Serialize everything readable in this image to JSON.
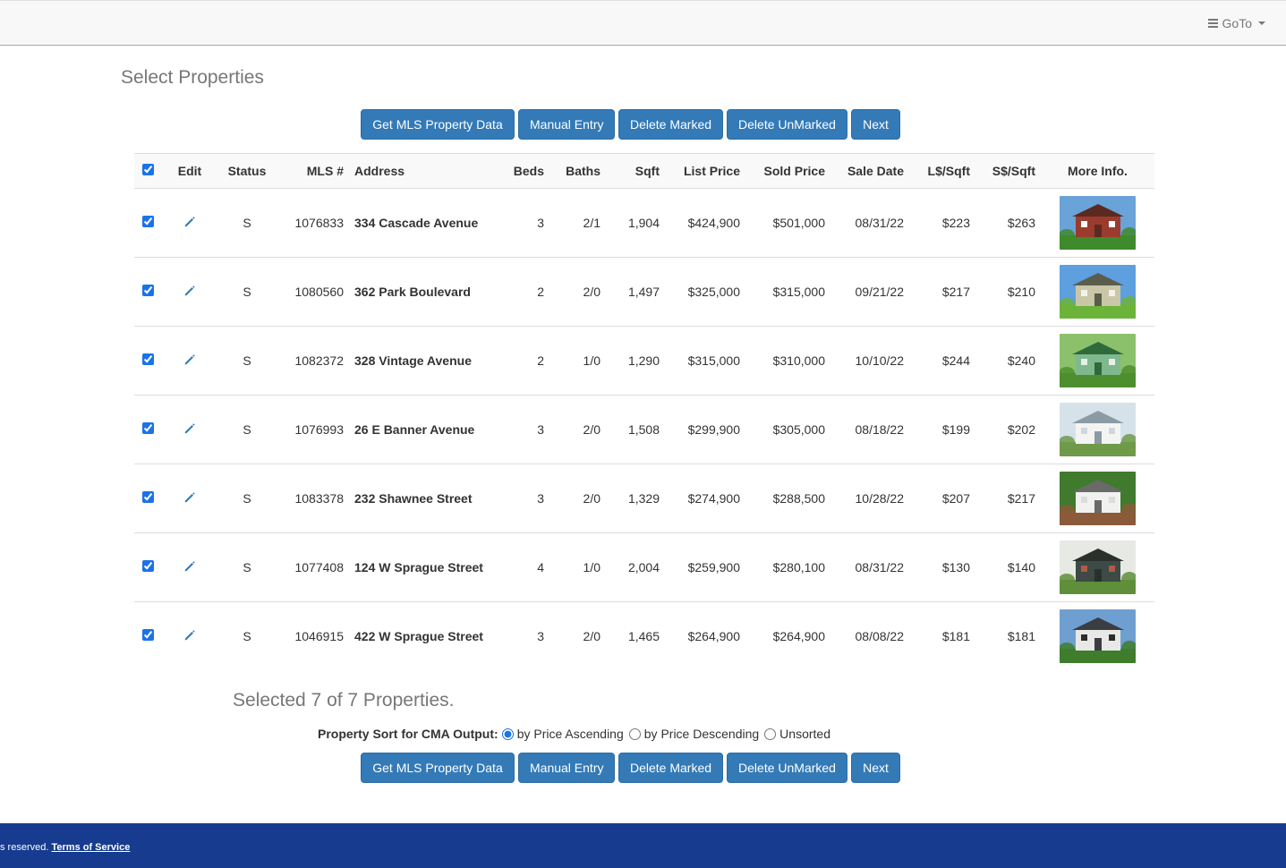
{
  "nav": {
    "goto_label": "GoTo"
  },
  "page": {
    "title": "Select Properties"
  },
  "buttons": {
    "get_mls": "Get MLS Property Data",
    "manual_entry": "Manual Entry",
    "delete_marked": "Delete Marked",
    "delete_unmarked": "Delete UnMarked",
    "next": "Next"
  },
  "table": {
    "headers": {
      "edit": "Edit",
      "status": "Status",
      "mls": "MLS #",
      "address": "Address",
      "beds": "Beds",
      "baths": "Baths",
      "sqft": "Sqft",
      "list_price": "List Price",
      "sold_price": "Sold Price",
      "sale_date": "Sale Date",
      "lsqft": "L$/Sqft",
      "ssqft": "S$/Sqft",
      "more_info": "More Info."
    },
    "select_all_checked": true,
    "rows": [
      {
        "checked": true,
        "status": "S",
        "mls": "1076833",
        "address": "334 Cascade Avenue",
        "beds": "3",
        "baths": "2/1",
        "sqft": "1,904",
        "list_price": "$424,900",
        "sold_price": "$501,000",
        "sale_date": "08/31/22",
        "lsqft": "$223",
        "ssqft": "$263",
        "photo": {
          "sky": "#6aa3d8",
          "house": "#9b3b2e",
          "roof": "#5a2a22",
          "lawn": "#3f8a2c",
          "trim": "#ffffff"
        }
      },
      {
        "checked": true,
        "status": "S",
        "mls": "1080560",
        "address": "362 Park Boulevard",
        "beds": "2",
        "baths": "2/0",
        "sqft": "1,497",
        "list_price": "$325,000",
        "sold_price": "$315,000",
        "sale_date": "09/21/22",
        "lsqft": "$217",
        "ssqft": "$210",
        "photo": {
          "sky": "#5e9fe0",
          "house": "#c9c7a8",
          "roof": "#5b5d4c",
          "lawn": "#6cb33a",
          "trim": "#f2f2ea"
        }
      },
      {
        "checked": true,
        "status": "S",
        "mls": "1082372",
        "address": "328 Vintage Avenue",
        "beds": "2",
        "baths": "1/0",
        "sqft": "1,290",
        "list_price": "$315,000",
        "sold_price": "$310,000",
        "sale_date": "10/10/22",
        "lsqft": "$244",
        "ssqft": "$240",
        "photo": {
          "sky": "#8bc16b",
          "house": "#7fb88e",
          "roof": "#2f6a3a",
          "lawn": "#4d8f2f",
          "trim": "#e8efe4"
        }
      },
      {
        "checked": true,
        "status": "S",
        "mls": "1076993",
        "address": "26 E Banner Avenue",
        "beds": "3",
        "baths": "2/0",
        "sqft": "1,508",
        "list_price": "$299,900",
        "sold_price": "$305,000",
        "sale_date": "08/18/22",
        "lsqft": "$199",
        "ssqft": "$202",
        "photo": {
          "sky": "#d6e2ea",
          "house": "#f4f4f2",
          "roof": "#8c9aa6",
          "lawn": "#6f9a4a",
          "trim": "#cfd7de"
        }
      },
      {
        "checked": true,
        "status": "S",
        "mls": "1083378",
        "address": "232 Shawnee Street",
        "beds": "3",
        "baths": "2/0",
        "sqft": "1,329",
        "list_price": "$274,900",
        "sold_price": "$288,500",
        "sale_date": "10/28/22",
        "lsqft": "$207",
        "ssqft": "$217",
        "photo": {
          "sky": "#3f7a2d",
          "house": "#f1f1ef",
          "roof": "#6a6a68",
          "lawn": "#8b5a3a",
          "trim": "#dcdcdc"
        }
      },
      {
        "checked": true,
        "status": "S",
        "mls": "1077408",
        "address": "124 W Sprague Street",
        "beds": "4",
        "baths": "1/0",
        "sqft": "2,004",
        "list_price": "$259,900",
        "sold_price": "$280,100",
        "sale_date": "08/31/22",
        "lsqft": "$130",
        "ssqft": "$140",
        "photo": {
          "sky": "#e6e9e4",
          "house": "#3e4a45",
          "roof": "#2a302c",
          "lawn": "#5f8f3a",
          "trim": "#b05a48"
        }
      },
      {
        "checked": true,
        "status": "S",
        "mls": "1046915",
        "address": "422 W Sprague Street",
        "beds": "3",
        "baths": "2/0",
        "sqft": "1,465",
        "list_price": "$264,900",
        "sold_price": "$264,900",
        "sale_date": "08/08/22",
        "lsqft": "$181",
        "ssqft": "$181",
        "photo": {
          "sky": "#6f9fd0",
          "house": "#e8e8e6",
          "roof": "#3a3d42",
          "lawn": "#3e7d2b",
          "trim": "#2c2c2c"
        }
      }
    ]
  },
  "summary": {
    "selected_text": "Selected 7 of 7 Properties."
  },
  "sort": {
    "label": "Property Sort for CMA Output:",
    "options": [
      "by Price Ascending",
      "by Price Descending",
      "Unsorted"
    ],
    "selected": "by Price Ascending"
  },
  "footer": {
    "text": "s reserved.",
    "link": "Terms of Service"
  },
  "colors": {
    "primary": "#337ab7",
    "footer_bg": "#163b8f",
    "header_bg": "#f8f8f8"
  },
  "icons": {
    "edit": "pencil-icon",
    "menu": "hamburger-icon",
    "dropdown": "caret-down-icon"
  }
}
